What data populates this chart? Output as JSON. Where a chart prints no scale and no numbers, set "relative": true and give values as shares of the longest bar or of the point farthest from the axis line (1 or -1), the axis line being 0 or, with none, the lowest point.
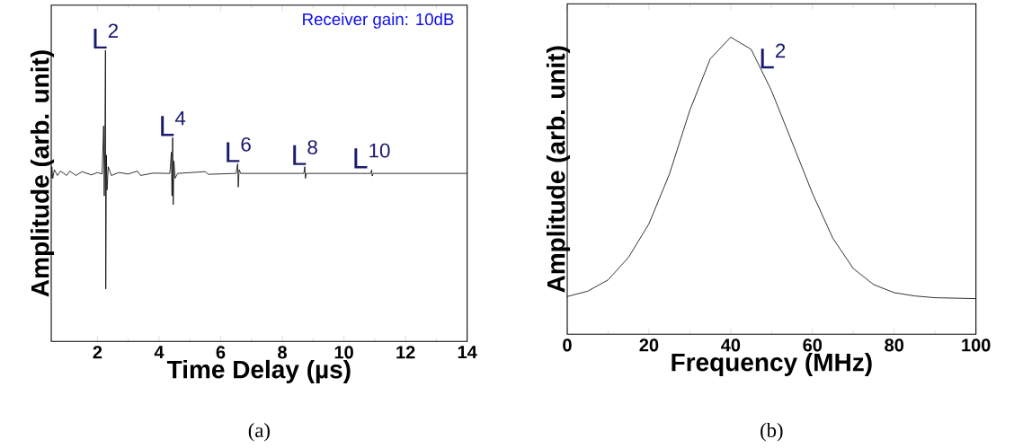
{
  "chart_data": [
    {
      "type": "line",
      "title": "(a)",
      "xlabel": "Time Delay (µs)",
      "ylabel": "Amplitude (arb. unit)",
      "relative": true,
      "xlim": [
        0.5,
        14
      ],
      "xticks": [
        2,
        4,
        6,
        8,
        10,
        12,
        14
      ],
      "x": [
        0.5,
        0.52,
        0.55,
        0.6,
        0.7,
        0.8,
        1.0,
        1.1,
        1.3,
        1.5,
        1.8,
        2.0,
        2.15,
        2.2,
        2.22,
        2.24,
        2.26,
        2.27,
        2.29,
        2.31,
        2.35,
        2.45,
        2.7,
        3.0,
        3.3,
        3.4,
        3.8,
        4.35,
        4.4,
        4.42,
        4.44,
        4.46,
        4.48,
        4.52,
        4.6,
        5.5,
        5.6,
        6.5,
        6.55,
        6.57,
        6.6,
        6.65,
        8.7,
        8.73,
        8.75,
        8.78,
        10.87,
        10.9,
        10.92,
        10.95,
        12.5,
        14
      ],
      "series": [
        {
          "color": "#000000",
          "values": [
            0.56,
            0.6,
            0.56,
            0.59,
            0.57,
            0.585,
            0.57,
            0.585,
            0.57,
            0.583,
            0.572,
            0.58,
            0.575,
            0.74,
            0.5,
            0.66,
            1,
            0.18,
            0.64,
            0.52,
            0.6,
            0.57,
            0.58,
            0.575,
            0.585,
            0.57,
            0.578,
            0.577,
            0.65,
            0.5,
            0.7,
            0.47,
            0.62,
            0.56,
            0.577,
            0.583,
            0.574,
            0.577,
            0.61,
            0.53,
            0.59,
            0.577,
            0.577,
            0.6,
            0.56,
            0.577,
            0.577,
            0.589,
            0.568,
            0.577,
            0.577,
            0.577
          ]
        }
      ],
      "annotations": [
        "Receiver gain: 10dB",
        {
          "text": "L$^{2}$",
          "x": 2.26,
          "y": 1
        },
        {
          "text": "L$^{4}$",
          "x": 4.44,
          "y": 0.7
        },
        {
          "text": "L$^{6}$",
          "x": 6.57,
          "y": 0.61
        },
        {
          "text": "L$^{8}$",
          "x": 8.73,
          "y": 0.6
        },
        {
          "text": "L$^{10}$",
          "x": 10.9,
          "y": 0.589
        }
      ]
    },
    {
      "type": "line",
      "title": "(b)",
      "xlabel": "Frequency (MHz)",
      "ylabel": "Amplitude (arb. unit)",
      "relative": true,
      "xlim": [
        0,
        100
      ],
      "xticks": [
        0,
        20,
        40,
        60,
        80,
        100
      ],
      "x": [
        0,
        5,
        10,
        15,
        20,
        25,
        30,
        35,
        40,
        45,
        50,
        55,
        60,
        65,
        70,
        75,
        80,
        85,
        90,
        100
      ],
      "series": [
        {
          "color": "#000000",
          "values": [
            0.127,
            0.145,
            0.183,
            0.259,
            0.372,
            0.539,
            0.754,
            0.927,
            1,
            0.959,
            0.819,
            0.647,
            0.474,
            0.323,
            0.221,
            0.167,
            0.14,
            0.129,
            0.123,
            0.12
          ]
        }
      ],
      "annotations": [
        {
          "text": "L$^{2}$",
          "x": 40,
          "y": 1
        }
      ]
    }
  ]
}
